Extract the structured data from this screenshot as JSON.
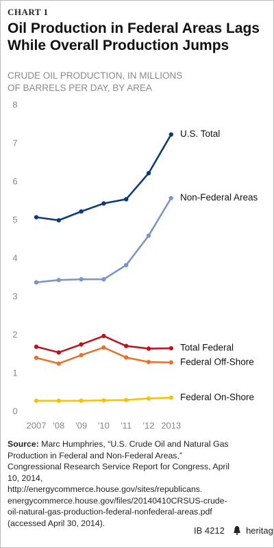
{
  "chart_data": {
    "type": "line",
    "label": "CHART 1",
    "title_lines": [
      "Oil Production in Federal Areas Lags",
      "While Overall Production Jumps"
    ],
    "subtitle_lines": [
      "CRUDE OIL PRODUCTION, IN MILLIONS",
      "OF BARRELS PER DAY, BY AREA"
    ],
    "categories": [
      "2007",
      "'08",
      "'09",
      "'10",
      "'11",
      "'12",
      "2013"
    ],
    "ylim": [
      0,
      8
    ],
    "yticks": [
      0,
      1,
      2,
      3,
      4,
      5,
      6,
      7,
      8
    ],
    "grid": false,
    "series": [
      {
        "name": "U.S. Total",
        "color": "#0d3b7a",
        "values": [
          5.08,
          5.0,
          5.23,
          5.44,
          5.55,
          6.23,
          7.24
        ]
      },
      {
        "name": "Non-Federal Areas",
        "color": "#7b95c9",
        "values": [
          3.38,
          3.44,
          3.46,
          3.46,
          3.83,
          4.6,
          5.58
        ]
      },
      {
        "name": "Total Federal",
        "color": "#c0141c",
        "values": [
          1.7,
          1.55,
          1.76,
          1.98,
          1.72,
          1.65,
          1.66
        ]
      },
      {
        "name": "Federal Off-Shore",
        "color": "#e8732c",
        "values": [
          1.41,
          1.26,
          1.48,
          1.68,
          1.42,
          1.3,
          1.29
        ]
      },
      {
        "name": "Federal On-Shore",
        "color": "#f4c30f",
        "values": [
          0.29,
          0.29,
          0.29,
          0.3,
          0.31,
          0.35,
          0.37
        ]
      }
    ],
    "source_label": "Source:",
    "source_text": "Marc Humphries, “U.S. Crude Oil and Natural Gas Production in Federal and Non-Federal Areas,” Congressional Research Service Report for Congress, April 10, 2014, http://energycommerce.house.gov/sites/republicans. energycommerce.house.gov/files/20140410CRSUS-crude-oil-natural-gas-production-federal-nonfederal-areas.pdf (accessed April 30, 2014).",
    "report_id": "IB 4212",
    "site": "heritage.org"
  }
}
